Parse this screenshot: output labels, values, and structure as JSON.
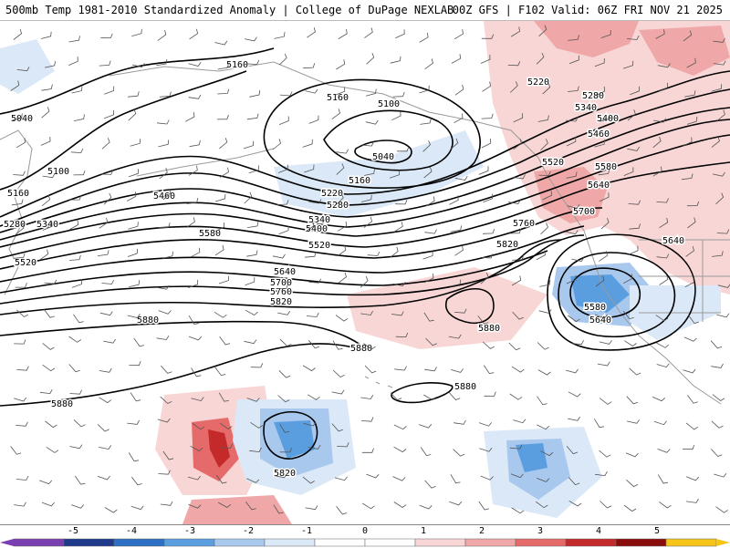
{
  "header": {
    "title": "500mb Temp 1981-2010 Standardized Anomaly | College of DuPage NEXLAB",
    "run_info": "00Z GFS | F102 Valid: 06Z FRI NOV 21 2025"
  },
  "colors": {
    "ocean": "#ffffff",
    "contour": "#000000",
    "coastline": "#9a9a9a",
    "anomaly_scale": [
      "#7a3fb0",
      "#1f3a8a",
      "#2c6fc4",
      "#5a9ee0",
      "#a8c8ee",
      "#dbe8f7",
      "#ffffff",
      "#ffffff",
      "#f8d6d6",
      "#efa7a7",
      "#e56a6a",
      "#c42a2a",
      "#8a0d0d",
      "#f5c518"
    ]
  },
  "colorbar": {
    "ticks": [
      "-5",
      "-4",
      "-3",
      "-2",
      "-1",
      "0",
      "1",
      "2",
      "3",
      "4",
      "5"
    ]
  },
  "contour_labels": [
    {
      "text": "5160",
      "id": "l1"
    },
    {
      "text": "5160",
      "id": "l2"
    },
    {
      "text": "5100",
      "id": "l3"
    },
    {
      "text": "5040",
      "id": "l4"
    },
    {
      "text": "5040",
      "id": "l5"
    },
    {
      "text": "5100",
      "id": "l6"
    },
    {
      "text": "5160",
      "id": "l7"
    },
    {
      "text": "5160",
      "id": "l8"
    },
    {
      "text": "5220",
      "id": "l9"
    },
    {
      "text": "5280",
      "id": "l10"
    },
    {
      "text": "5340",
      "id": "l11"
    },
    {
      "text": "5400",
      "id": "l12"
    },
    {
      "text": "5460",
      "id": "l13"
    },
    {
      "text": "5520",
      "id": "l14"
    },
    {
      "text": "5580",
      "id": "l15"
    },
    {
      "text": "5640",
      "id": "l16"
    },
    {
      "text": "5700",
      "id": "l17"
    },
    {
      "text": "5760",
      "id": "l18"
    },
    {
      "text": "5820",
      "id": "l19"
    },
    {
      "text": "5880",
      "id": "l20"
    },
    {
      "text": "5280",
      "id": "l21"
    },
    {
      "text": "5340",
      "id": "l22"
    },
    {
      "text": "5520",
      "id": "l23"
    },
    {
      "text": "5220",
      "id": "l24"
    },
    {
      "text": "5280",
      "id": "l25"
    },
    {
      "text": "5340",
      "id": "l26"
    },
    {
      "text": "5400",
      "id": "l27"
    },
    {
      "text": "5460",
      "id": "l28"
    },
    {
      "text": "5520",
      "id": "l29"
    },
    {
      "text": "5580",
      "id": "l30"
    },
    {
      "text": "5640",
      "id": "l31"
    },
    {
      "text": "5700",
      "id": "l32"
    },
    {
      "text": "5760",
      "id": "l33"
    },
    {
      "text": "5820",
      "id": "l34"
    },
    {
      "text": "5640",
      "id": "l35"
    },
    {
      "text": "5580",
      "id": "l36"
    },
    {
      "text": "5640",
      "id": "l37"
    },
    {
      "text": "5880",
      "id": "l38"
    },
    {
      "text": "5880",
      "id": "l39"
    },
    {
      "text": "5880",
      "id": "l40"
    },
    {
      "text": "5880",
      "id": "l41"
    },
    {
      "text": "5820",
      "id": "l42"
    }
  ]
}
